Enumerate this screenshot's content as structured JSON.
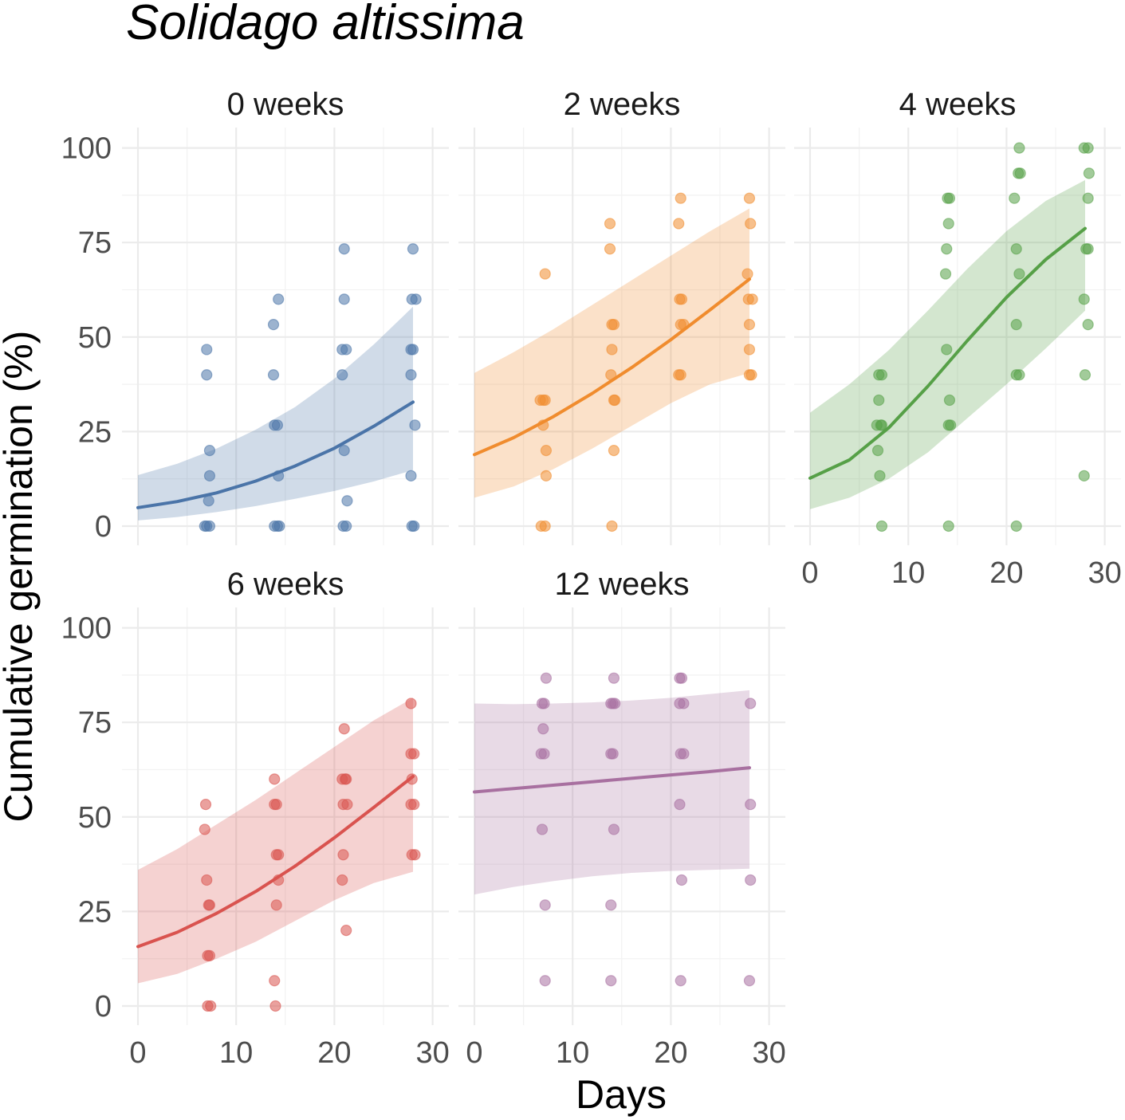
{
  "chart_data": {
    "type": "scatter",
    "title": "Solidago altissima",
    "xlabel": "Days",
    "ylabel": "Cumulative germination (%)",
    "xlim": [
      0,
      30
    ],
    "ylim": [
      0,
      100
    ],
    "x_ticks": [
      0,
      10,
      20,
      30
    ],
    "y_ticks": [
      0,
      25,
      50,
      75,
      100
    ],
    "grid": true,
    "layout": "facets 3 columns x 2 rows",
    "panels": [
      {
        "label": "0 weeks",
        "color": "#4a74a8",
        "points": [
          [
            7,
            46.7
          ],
          [
            7,
            40
          ],
          [
            7.3,
            20
          ],
          [
            7.3,
            13.3
          ],
          [
            7.2,
            6.7
          ],
          [
            6.8,
            0
          ],
          [
            7,
            0
          ],
          [
            7.3,
            0
          ],
          [
            13.8,
            53.3
          ],
          [
            14.3,
            60
          ],
          [
            13.8,
            40
          ],
          [
            13.9,
            26.7
          ],
          [
            14.2,
            26.7
          ],
          [
            14.3,
            13.3
          ],
          [
            13.9,
            0
          ],
          [
            14.2,
            0
          ],
          [
            14.4,
            0
          ],
          [
            21,
            73.3
          ],
          [
            21,
            60
          ],
          [
            20.8,
            46.7
          ],
          [
            21.2,
            46.7
          ],
          [
            20.8,
            40
          ],
          [
            21,
            20
          ],
          [
            21.3,
            6.7
          ],
          [
            20.9,
            0
          ],
          [
            21.2,
            0
          ],
          [
            28,
            73.3
          ],
          [
            27.9,
            60
          ],
          [
            28.3,
            60
          ],
          [
            27.8,
            46.7
          ],
          [
            28,
            46.7
          ],
          [
            27.8,
            40
          ],
          [
            28.2,
            26.7
          ],
          [
            27.8,
            13.3
          ],
          [
            27.9,
            0
          ],
          [
            28.1,
            0
          ]
        ],
        "curve": {
          "x": [
            0,
            4,
            8,
            12,
            16,
            20,
            24,
            28
          ],
          "fit": [
            4.9,
            6.5,
            8.8,
            11.9,
            15.9,
            20.6,
            26.4,
            32.8
          ],
          "lower": [
            1.5,
            2.4,
            3.7,
            5.3,
            7.2,
            9.3,
            11.8,
            14.8
          ],
          "upper": [
            13.5,
            16.5,
            20.5,
            25.5,
            31.5,
            39,
            48,
            58
          ]
        }
      },
      {
        "label": "2 weeks",
        "color": "#f08c2e",
        "points": [
          [
            6.7,
            33.3
          ],
          [
            7,
            33.3
          ],
          [
            7.2,
            33.3
          ],
          [
            7.2,
            66.7
          ],
          [
            7,
            26.7
          ],
          [
            7.3,
            20
          ],
          [
            7.3,
            13.3
          ],
          [
            6.8,
            0
          ],
          [
            7.2,
            0
          ],
          [
            13.8,
            80
          ],
          [
            13.8,
            73.3
          ],
          [
            14.2,
            53.3
          ],
          [
            14,
            53.3
          ],
          [
            14,
            46.7
          ],
          [
            13.9,
            40
          ],
          [
            14.2,
            33.3
          ],
          [
            14.3,
            33.3
          ],
          [
            14.2,
            20
          ],
          [
            14,
            0
          ],
          [
            21,
            86.7
          ],
          [
            20.8,
            80
          ],
          [
            20.9,
            60
          ],
          [
            21.1,
            60
          ],
          [
            21,
            53.3
          ],
          [
            21.3,
            53.3
          ],
          [
            20.8,
            40
          ],
          [
            21,
            40
          ],
          [
            28,
            86.7
          ],
          [
            28.1,
            80
          ],
          [
            27.8,
            66.7
          ],
          [
            27.9,
            60
          ],
          [
            28.3,
            60
          ],
          [
            28,
            53.3
          ],
          [
            28,
            46.7
          ],
          [
            28,
            40
          ],
          [
            28.2,
            40
          ]
        ],
        "curve": {
          "x": [
            0,
            4,
            8,
            12,
            16,
            20,
            24,
            28
          ],
          "fit": [
            18.9,
            23.4,
            28.9,
            35.1,
            41.9,
            49.3,
            57.2,
            65.3
          ],
          "lower": [
            7.5,
            10.5,
            15,
            20.5,
            26.5,
            32.5,
            37.5,
            40.5
          ],
          "upper": [
            40.5,
            46,
            52,
            58.5,
            65,
            71.5,
            78,
            84
          ]
        }
      },
      {
        "label": "4 weeks",
        "color": "#56a047",
        "points": [
          [
            7,
            40
          ],
          [
            7.3,
            40
          ],
          [
            7,
            33.3
          ],
          [
            6.8,
            26.7
          ],
          [
            7.2,
            26.7
          ],
          [
            7.3,
            26.7
          ],
          [
            6.9,
            20
          ],
          [
            7.1,
            13.3
          ],
          [
            7.3,
            0
          ],
          [
            14,
            86.7
          ],
          [
            14.2,
            86.7
          ],
          [
            14.1,
            80
          ],
          [
            13.9,
            73.3
          ],
          [
            13.8,
            66.7
          ],
          [
            13.9,
            46.7
          ],
          [
            14.2,
            33.3
          ],
          [
            14.1,
            26.7
          ],
          [
            14.3,
            26.7
          ],
          [
            14.1,
            0
          ],
          [
            21.3,
            100
          ],
          [
            21.2,
            93.3
          ],
          [
            21.4,
            93.3
          ],
          [
            20.8,
            86.7
          ],
          [
            21,
            73.3
          ],
          [
            21.3,
            66.7
          ],
          [
            21,
            53.3
          ],
          [
            21,
            40
          ],
          [
            21.3,
            40
          ],
          [
            21,
            0
          ],
          [
            27.9,
            100
          ],
          [
            28.3,
            100
          ],
          [
            28.4,
            93.3
          ],
          [
            28.3,
            86.7
          ],
          [
            28.1,
            73.3
          ],
          [
            28.3,
            73.3
          ],
          [
            27.9,
            60
          ],
          [
            28.3,
            53.3
          ],
          [
            28,
            40
          ],
          [
            27.9,
            13.3
          ]
        ],
        "curve": {
          "x": [
            0,
            4,
            8,
            12,
            16,
            20,
            24,
            28
          ],
          "fit": [
            12.7,
            17.5,
            26,
            37,
            49,
            60.5,
            70.5,
            78.7
          ],
          "lower": [
            4.5,
            7.5,
            12.5,
            19.5,
            28.5,
            37.5,
            47,
            57
          ],
          "upper": [
            30,
            37.5,
            46.5,
            57,
            68,
            78,
            86,
            91.5
          ]
        }
      },
      {
        "label": "6 weeks",
        "color": "#d9534f",
        "points": [
          [
            6.9,
            53.3
          ],
          [
            6.8,
            46.7
          ],
          [
            7,
            33.3
          ],
          [
            7.2,
            26.7
          ],
          [
            7.3,
            26.7
          ],
          [
            7.1,
            13.3
          ],
          [
            7.3,
            13.3
          ],
          [
            7.1,
            0
          ],
          [
            7.4,
            0
          ],
          [
            13.9,
            60
          ],
          [
            13.9,
            53.3
          ],
          [
            14.1,
            53.3
          ],
          [
            14.1,
            40
          ],
          [
            14.3,
            40
          ],
          [
            14.3,
            33.3
          ],
          [
            14.1,
            26.7
          ],
          [
            13.9,
            6.7
          ],
          [
            14,
            0
          ],
          [
            21,
            73.3
          ],
          [
            20.8,
            60
          ],
          [
            21.1,
            60
          ],
          [
            21.2,
            60
          ],
          [
            20.9,
            53.3
          ],
          [
            21.3,
            53.3
          ],
          [
            20.9,
            40
          ],
          [
            20.8,
            33.3
          ],
          [
            21.2,
            20
          ],
          [
            27.8,
            80
          ],
          [
            27.8,
            66.7
          ],
          [
            28.1,
            66.7
          ],
          [
            27.9,
            60
          ],
          [
            27.8,
            53.3
          ],
          [
            28.1,
            53.3
          ],
          [
            27.9,
            40
          ],
          [
            28.2,
            40
          ]
        ],
        "curve": {
          "x": [
            0,
            4,
            8,
            12,
            16,
            20,
            24,
            28
          ],
          "fit": [
            15.7,
            19.5,
            24.5,
            30.3,
            37,
            44.5,
            52.5,
            60.7
          ],
          "lower": [
            6,
            8.5,
            12.5,
            17,
            22.5,
            28,
            32.5,
            35.5
          ],
          "upper": [
            36,
            41.5,
            48,
            54.5,
            61.5,
            68.5,
            75.5,
            81.5
          ]
        }
      },
      {
        "label": "12 weeks",
        "color": "#a870a0",
        "points": [
          [
            7.3,
            86.7
          ],
          [
            6.9,
            80
          ],
          [
            7.1,
            80
          ],
          [
            7,
            73.3
          ],
          [
            6.8,
            66.7
          ],
          [
            7.1,
            66.7
          ],
          [
            6.9,
            46.7
          ],
          [
            7.2,
            26.7
          ],
          [
            7.2,
            6.7
          ],
          [
            14.2,
            86.7
          ],
          [
            13.9,
            80
          ],
          [
            14.1,
            80
          ],
          [
            14.3,
            80
          ],
          [
            13.9,
            66.7
          ],
          [
            14.1,
            66.7
          ],
          [
            14.2,
            46.7
          ],
          [
            13.9,
            26.7
          ],
          [
            13.9,
            6.7
          ],
          [
            20.9,
            86.7
          ],
          [
            21.1,
            86.7
          ],
          [
            20.9,
            80
          ],
          [
            21.3,
            80
          ],
          [
            21,
            66.7
          ],
          [
            21.3,
            66.7
          ],
          [
            20.9,
            53.3
          ],
          [
            21.1,
            33.3
          ],
          [
            21,
            6.7
          ],
          [
            28.1,
            80
          ],
          [
            28.1,
            53.3
          ],
          [
            28.1,
            33.3
          ],
          [
            28,
            6.7
          ]
        ],
        "curve": {
          "x": [
            0,
            4,
            8,
            12,
            16,
            20,
            24,
            28
          ],
          "fit": [
            56.6,
            57.5,
            58.4,
            59.3,
            60.2,
            61.1,
            62,
            63
          ],
          "lower": [
            29.5,
            31.5,
            33,
            34.3,
            35.2,
            35.7,
            36,
            36.3
          ],
          "upper": [
            80,
            79.8,
            80,
            80.3,
            80.8,
            81.5,
            82.5,
            83.5
          ]
        }
      }
    ]
  }
}
